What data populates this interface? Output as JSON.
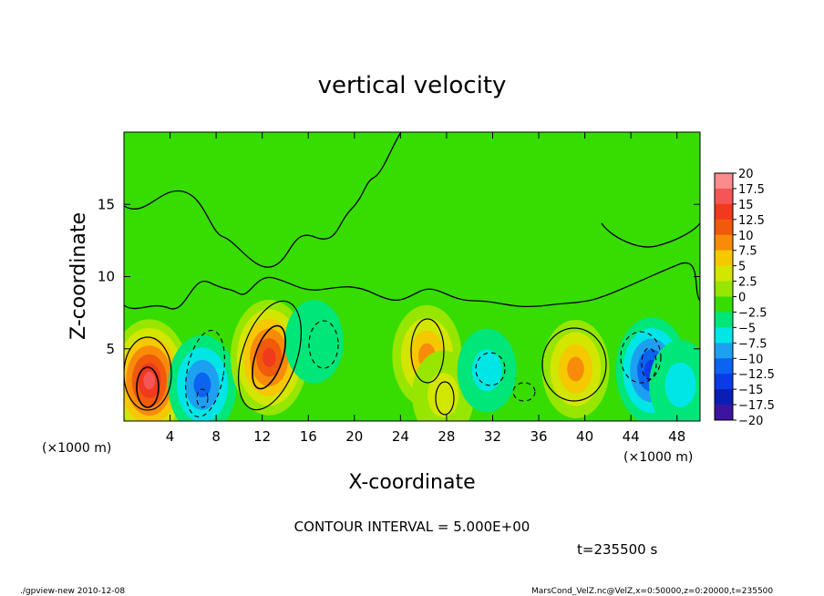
{
  "chart_data": {
    "type": "heatmap",
    "title": "vertical velocity",
    "xlabel": "X-coordinate",
    "ylabel": "Z-coordinate",
    "x_unit": "(×1000 m)",
    "y_unit": "(×1000 m)",
    "xlim": [
      0,
      50
    ],
    "ylim": [
      0,
      20
    ],
    "x_ticks": [
      4,
      8,
      12,
      16,
      20,
      24,
      28,
      32,
      36,
      40,
      44,
      48
    ],
    "y_ticks": [
      5,
      10,
      15
    ],
    "contour_interval": "CONTOUR INTERVAL = 5.000E+00",
    "time_label": "t=235500 s",
    "colorbar": {
      "min": -20,
      "max": 20,
      "step": 2.5,
      "labels": [
        "20",
        "17.5",
        "15",
        "12.5",
        "10",
        "7.5",
        "5",
        "2.5",
        "0",
        "−2.5",
        "−5",
        "−7.5",
        "−10",
        "−12.5",
        "−15",
        "−17.5",
        "−20"
      ],
      "colors": [
        "#fa8c8c",
        "#f55555",
        "#ef3a1e",
        "#f05a0a",
        "#f88c0a",
        "#f5c800",
        "#d2e600",
        "#96e600",
        "#37dc00",
        "#00e678",
        "#00e6e6",
        "#1ea0f0",
        "#0a64f0",
        "#0a3ce6",
        "#0a1eb4",
        "#3c14a0"
      ]
    },
    "features": [
      {
        "x": 2.2,
        "z": 2.8,
        "w": 18.4,
        "name": "updraft"
      },
      {
        "x": 6.8,
        "z": 2.5,
        "w": -10.5,
        "name": "downdraft"
      },
      {
        "x": 12.6,
        "z": 4.4,
        "w": 15.9,
        "name": "updraft"
      },
      {
        "x": 16.5,
        "z": 5.5,
        "w": -4.8,
        "name": "downdraft"
      },
      {
        "x": 26.3,
        "z": 4.5,
        "w": 11.2,
        "name": "updraft"
      },
      {
        "x": 27.7,
        "z": 1.8,
        "w": 6.8,
        "name": "updraft"
      },
      {
        "x": 31.5,
        "z": 3.5,
        "w": -5.0,
        "name": "downdraft"
      },
      {
        "x": 39.2,
        "z": 3.6,
        "w": 10.0,
        "name": "updraft"
      },
      {
        "x": 45.8,
        "z": 3.5,
        "w": -12.7,
        "name": "downdraft"
      },
      {
        "x": 48.3,
        "z": 2.5,
        "w": -7.0,
        "name": "downdraft"
      }
    ]
  },
  "footer": {
    "left": "./gpview-new  2010-12-08",
    "right": "MarsCond_VelZ.nc@VelZ,x=0:50000,z=0:20000,t=235500"
  }
}
